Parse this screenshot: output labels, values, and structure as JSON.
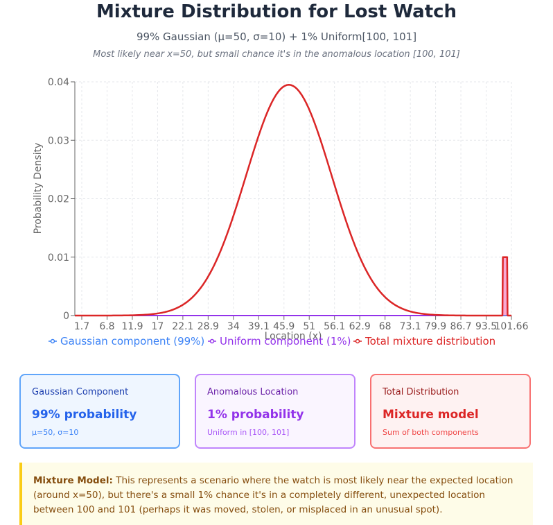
{
  "header": {
    "title": "Mixture Distribution for Lost Watch",
    "subtitle": "99% Gaussian (μ=50, σ=10) + 1% Uniform[100, 101]",
    "note": "Most likely near x=50, but small chance it's in the anomalous location [100, 101]"
  },
  "chart_data": {
    "type": "line",
    "xlabel": "Location (x)",
    "ylabel": "Probability Density",
    "ylim": [
      0,
      0.04
    ],
    "grid": true,
    "legend_placement": "bottom",
    "x_tick_labels": [
      "1.7",
      "6.8",
      "11.9",
      "17",
      "22.1",
      "28.9",
      "34",
      "39.1",
      "45.9",
      "51",
      "56.1",
      "62.9",
      "68",
      "73.1",
      "79.9",
      "86.7",
      "93.5",
      "101.66"
    ],
    "y_tick_labels": [
      "0",
      "0.01",
      "0.02",
      "0.03",
      "0.04"
    ],
    "x_range": [
      0,
      102
    ],
    "series": [
      {
        "name": "Gaussian component (99%)",
        "color": "#3b82f6",
        "x": [
          0,
          10,
          20,
          25,
          30,
          35,
          40,
          45,
          50,
          55,
          60,
          65,
          70,
          75,
          80,
          90,
          100,
          102
        ],
        "y": [
          1.5e-06,
          1.32e-05,
          0.0004,
          0.0017,
          0.0053,
          0.0128,
          0.024,
          0.0349,
          0.0395,
          0.0349,
          0.024,
          0.0128,
          0.0053,
          0.0017,
          0.0004,
          1.32e-05,
          1e-07,
          0
        ]
      },
      {
        "name": "Uniform component (1%)",
        "color": "#9333ea",
        "x": [
          0,
          99.9,
          100,
          101,
          101.1,
          102
        ],
        "y": [
          0,
          0,
          0.01,
          0.01,
          0,
          0
        ]
      },
      {
        "name": "Total mixture distribution",
        "color": "#dc2626",
        "x": [
          0,
          10,
          20,
          25,
          30,
          35,
          40,
          45,
          50,
          55,
          60,
          65,
          70,
          75,
          80,
          90,
          99.9,
          100,
          101,
          101.1,
          102
        ],
        "y": [
          1.5e-06,
          1.32e-05,
          0.0004,
          0.0017,
          0.0053,
          0.0128,
          0.024,
          0.0349,
          0.0395,
          0.0349,
          0.024,
          0.0128,
          0.0053,
          0.0017,
          0.0004,
          1.32e-05,
          0,
          0.01,
          0.01,
          0,
          0
        ]
      }
    ]
  },
  "cards": [
    {
      "label": "Gaussian Component",
      "value": "99% probability",
      "detail": "μ=50, σ=10"
    },
    {
      "label": "Anomalous Location",
      "value": "1% probability",
      "detail": "Uniform in [100, 101]"
    },
    {
      "label": "Total Distribution",
      "value": "Mixture model",
      "detail": "Sum of both components"
    }
  ],
  "callout": {
    "heading": "Mixture Model:",
    "text": "This represents a scenario where the watch is most likely near the expected location (around x=50), but there's a small 1% chance it's in a completely different, unexpected location between 100 and 101 (perhaps it was moved, stolen, or misplaced in an unusual spot)."
  }
}
